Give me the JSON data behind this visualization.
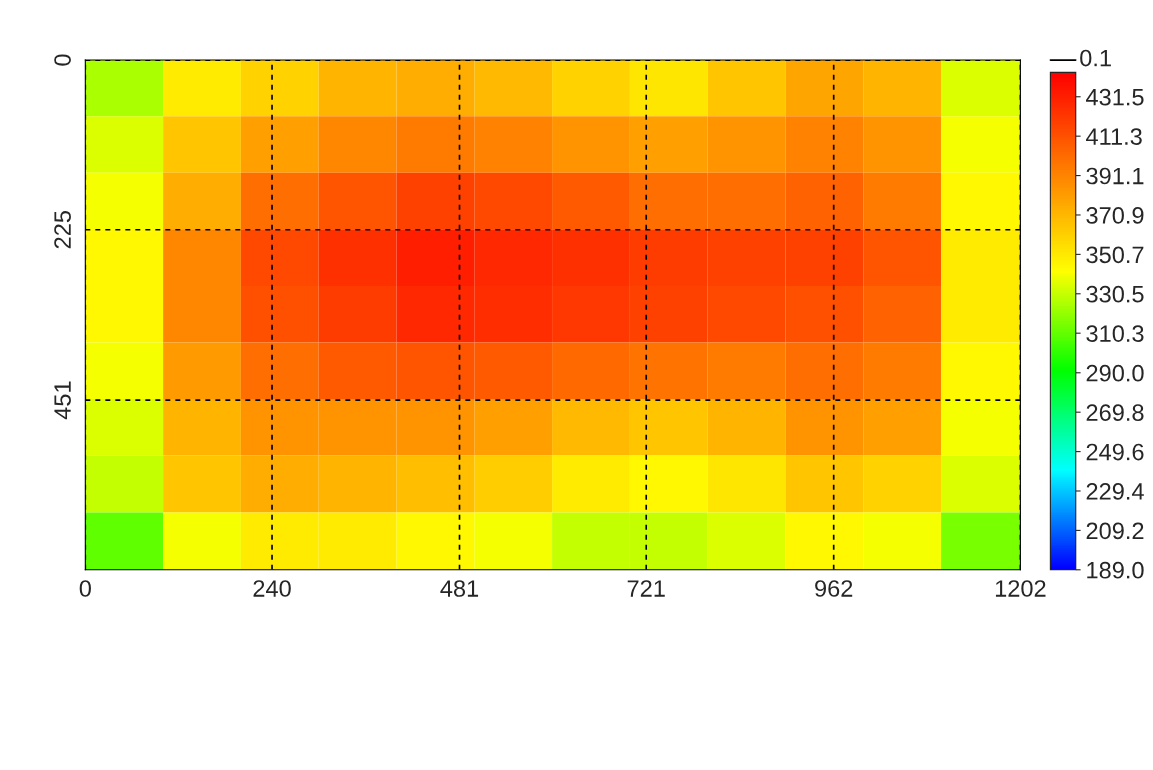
{
  "chart_data": {
    "type": "heatmap",
    "x": [
      50,
      150,
      250,
      350,
      450,
      550,
      650,
      750,
      850,
      950,
      1050,
      1150
    ],
    "y": [
      37,
      112,
      187,
      262,
      337,
      412,
      487,
      562,
      638
    ],
    "xlim": [
      0,
      1202
    ],
    "ylim": [
      676,
      0
    ],
    "xticks": [
      0,
      240,
      481,
      721,
      962,
      1202
    ],
    "yticks": [
      0,
      225,
      451
    ],
    "cells": [
      [
        325,
        350,
        360,
        372,
        375,
        370,
        360,
        352,
        365,
        378,
        372,
        335
      ],
      [
        335,
        365,
        380,
        390,
        395,
        392,
        385,
        380,
        385,
        392,
        385,
        340
      ],
      [
        340,
        375,
        400,
        410,
        418,
        415,
        408,
        400,
        400,
        405,
        395,
        345
      ],
      [
        345,
        390,
        415,
        425,
        432,
        428,
        425,
        420,
        418,
        418,
        410,
        350
      ],
      [
        345,
        390,
        412,
        420,
        428,
        426,
        422,
        418,
        415,
        412,
        405,
        350
      ],
      [
        340,
        382,
        400,
        408,
        410,
        408,
        402,
        398,
        395,
        400,
        395,
        345
      ],
      [
        335,
        372,
        385,
        385,
        385,
        380,
        370,
        365,
        372,
        385,
        380,
        340
      ],
      [
        330,
        365,
        375,
        372,
        368,
        362,
        350,
        345,
        352,
        365,
        360,
        335
      ],
      [
        310,
        340,
        350,
        350,
        345,
        340,
        330,
        330,
        335,
        345,
        340,
        315
      ]
    ],
    "clim": [
      189.0,
      444.0
    ],
    "cticks": [
      {
        "value": 189.0,
        "label": "189.0"
      },
      {
        "value": 209.2,
        "label": "209.2"
      },
      {
        "value": 229.4,
        "label": "229.4"
      },
      {
        "value": 249.6,
        "label": "249.6"
      },
      {
        "value": 269.8,
        "label": "269.8"
      },
      {
        "value": 290.0,
        "label": "290.0"
      },
      310.3,
      330.5,
      350.7,
      370.9,
      391.1,
      411.3,
      431.5
    ],
    "annotations": [
      "0.1"
    ],
    "grid": true
  }
}
